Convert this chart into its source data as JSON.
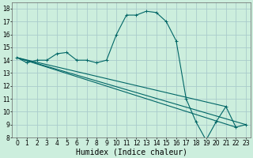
{
  "xlabel": "Humidex (Indice chaleur)",
  "background_color": "#cceedd",
  "grid_color": "#aacccc",
  "line_color": "#006666",
  "xlim": [
    -0.5,
    23.5
  ],
  "ylim": [
    8,
    18.5
  ],
  "xticks": [
    0,
    1,
    2,
    3,
    4,
    5,
    6,
    7,
    8,
    9,
    10,
    11,
    12,
    13,
    14,
    15,
    16,
    17,
    18,
    19,
    20,
    21,
    22,
    23
  ],
  "yticks": [
    8,
    9,
    10,
    11,
    12,
    13,
    14,
    15,
    16,
    17,
    18
  ],
  "main_x": [
    0,
    1,
    2,
    3,
    4,
    5,
    6,
    7,
    8,
    9,
    10,
    11,
    12,
    13,
    14,
    15,
    16,
    17,
    18,
    19,
    20,
    21,
    22,
    23
  ],
  "main_y": [
    14.2,
    13.8,
    14.0,
    14.0,
    14.5,
    14.6,
    14.0,
    14.0,
    13.8,
    14.0,
    16.0,
    17.5,
    17.5,
    17.8,
    17.7,
    17.0,
    15.5,
    11.0,
    9.2,
    7.8,
    9.2,
    10.4,
    8.8,
    9.0
  ],
  "fan_lines": [
    {
      "x": [
        0,
        23
      ],
      "y": [
        14.2,
        9.0
      ]
    },
    {
      "x": [
        0,
        22
      ],
      "y": [
        14.2,
        8.8
      ]
    },
    {
      "x": [
        0,
        21
      ],
      "y": [
        14.2,
        10.4
      ]
    }
  ],
  "xlabel_fontsize": 7,
  "tick_fontsize": 5.5
}
